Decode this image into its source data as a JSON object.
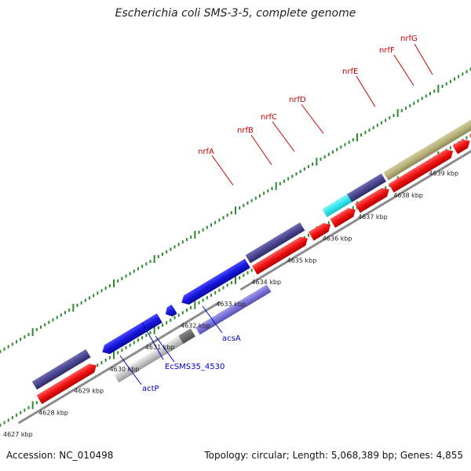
{
  "title": "Escherichia coli SMS-3-5, complete genome",
  "footer": {
    "accession": "Accession: NC_010498",
    "summary": "Topology: circular; Length: 5,068,389 bp; Genes: 4,855"
  },
  "scale": {
    "unit": "kbp",
    "labels": [
      "4627 kbp",
      "4628 kbp",
      "4629 kbp",
      "4630 kbp",
      "4631 kbp",
      "4632 kbp",
      "4633 kbp",
      "4634 kbp",
      "4635 kbp",
      "4636 kbp",
      "4637 kbp",
      "4638 kbp",
      "4639 kbp"
    ]
  },
  "gene_labels": [
    {
      "id": "nrfA",
      "text": "nrfA",
      "strand": "forward",
      "color": "#cc0000"
    },
    {
      "id": "nrfB",
      "text": "nrfB",
      "strand": "forward",
      "color": "#cc0000"
    },
    {
      "id": "nrfC",
      "text": "nrfC",
      "strand": "forward",
      "color": "#cc0000"
    },
    {
      "id": "nrfD",
      "text": "nrfD",
      "strand": "forward",
      "color": "#cc0000"
    },
    {
      "id": "nrfE",
      "text": "nrfE",
      "strand": "forward",
      "color": "#cc0000"
    },
    {
      "id": "nrfF",
      "text": "nrfF",
      "strand": "forward",
      "color": "#cc0000"
    },
    {
      "id": "nrfG",
      "text": "nrfG",
      "strand": "forward",
      "color": "#cc0000"
    },
    {
      "id": "actP",
      "text": "actP",
      "strand": "reverse",
      "color": "#0000cc"
    },
    {
      "id": "EcSMS35_4530",
      "text": "EcSMS35_4530",
      "strand": "reverse",
      "color": "#0000cc"
    },
    {
      "id": "acsA",
      "text": "acsA",
      "strand": "reverse",
      "color": "#0000cc"
    }
  ],
  "colors": {
    "backbone": "#8c8c8c",
    "tick": "#2d8a2d",
    "forward_cds": "#ee1111",
    "reverse_cds": "#1515dd",
    "feature_dark": "#4b4690",
    "feature_cyan": "#33e6ec",
    "feature_olive": "#b7b17a",
    "feature_lavender": "#7a72d6",
    "feature_gray": "#c4c4c4"
  }
}
